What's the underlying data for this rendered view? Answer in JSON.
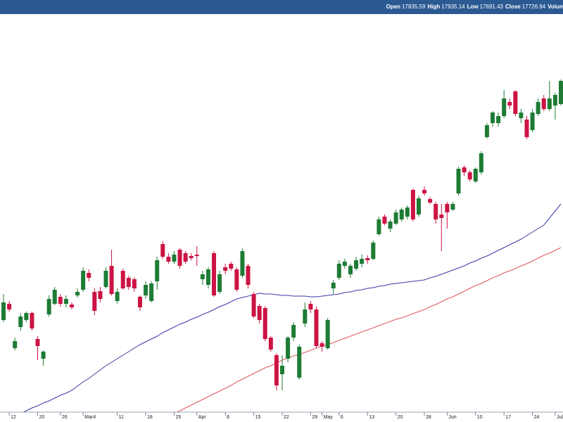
{
  "chart_data": {
    "type": "candlestick",
    "header": {
      "items": [
        {
          "label": "Open",
          "value": 17835.59
        },
        {
          "label": "High",
          "value": 17935.14
        },
        {
          "label": "Low",
          "value": 17691.43
        },
        {
          "label": "Close",
          "value": 17726.94
        }
      ],
      "trailing": "Volum"
    },
    "ylim": [
      15100,
      18000
    ],
    "grid": false,
    "up_color": "#1e7b34",
    "down_color": "#cc1444",
    "categories": [
      null,
      "12",
      null,
      null,
      null,
      null,
      "20",
      null,
      null,
      null,
      "26",
      null,
      null,
      null,
      "Mar4",
      null,
      null,
      null,
      null,
      null,
      "11",
      null,
      null,
      null,
      null,
      "18",
      null,
      null,
      null,
      null,
      "25",
      null,
      null,
      null,
      "Apr",
      null,
      null,
      null,
      null,
      "8",
      null,
      null,
      null,
      null,
      "15",
      null,
      null,
      null,
      null,
      "22",
      null,
      null,
      null,
      null,
      "29",
      null,
      "May",
      null,
      null,
      "6",
      null,
      null,
      null,
      null,
      "13",
      null,
      null,
      null,
      null,
      "20",
      null,
      null,
      null,
      null,
      "28",
      null,
      null,
      null,
      "Jun",
      null,
      null,
      null,
      null,
      "10",
      null,
      null,
      null,
      null,
      "17",
      null,
      null,
      null,
      null,
      "24",
      null,
      null,
      null,
      "Jul",
      null
    ],
    "open": [
      15825,
      15940,
      15625,
      15775,
      15825,
      15875,
      15690,
      15550,
      15865,
      15940,
      15990,
      15940,
      15935,
      16000,
      16040,
      16160,
      16025,
      16030,
      16060,
      16210,
      15960,
      16175,
      16125,
      16115,
      15990,
      16000,
      15960,
      16100,
      16365,
      16275,
      16240,
      16325,
      16300,
      16280,
      16290,
      16115,
      16075,
      16300,
      16025,
      16200,
      16225,
      16185,
      16140,
      16210,
      16010,
      15925,
      15910,
      15700,
      15575,
      15440,
      15550,
      15700,
      15415,
      15800,
      15940,
      15900,
      15660,
      15625,
      16050,
      16125,
      16210,
      16150,
      16190,
      16225,
      16265,
      16260,
      16435,
      16560,
      16475,
      16510,
      16540,
      16560,
      16750,
      16575,
      16750,
      16685,
      16650,
      16575,
      16650,
      16610,
      16725,
      16910,
      16875,
      16810,
      16875,
      17125,
      17225,
      17225,
      17275,
      17375,
      17450,
      17260,
      17250,
      17175,
      17290,
      17400,
      17325,
      17350,
      17360
    ],
    "high": [
      16010,
      15960,
      15700,
      15875,
      15885,
      15885,
      15710,
      15610,
      16000,
      16060,
      16010,
      16000,
      15950,
      16050,
      16200,
      16185,
      16050,
      16060,
      16200,
      16325,
      16050,
      16190,
      16140,
      16130,
      16000,
      16100,
      16100,
      16275,
      16385,
      16300,
      16315,
      16335,
      16315,
      16300,
      16350,
      16175,
      16200,
      16315,
      16175,
      16225,
      16240,
      16200,
      16335,
      16225,
      16025,
      15940,
      15925,
      15710,
      15590,
      15575,
      15710,
      15810,
      15650,
      15950,
      15960,
      15920,
      15675,
      15840,
      16110,
      16250,
      16260,
      16225,
      16275,
      16290,
      16285,
      16390,
      16560,
      16575,
      16540,
      16610,
      16625,
      16640,
      16760,
      16710,
      16775,
      16700,
      16665,
      16650,
      16665,
      16665,
      16915,
      16925,
      16890,
      16910,
      17025,
      17225,
      17310,
      17300,
      17460,
      17400,
      17460,
      17325,
      17275,
      17325,
      17400,
      17425,
      17525,
      17440,
      17535
    ],
    "low": [
      15810,
      15885,
      15610,
      15750,
      15810,
      15750,
      15540,
      15500,
      15850,
      15930,
      15920,
      15915,
      15900,
      15985,
      16025,
      16100,
      15860,
      15950,
      16050,
      16000,
      15940,
      16040,
      16040,
      16025,
      15890,
      15975,
      15950,
      16040,
      16260,
      16225,
      16225,
      16190,
      16225,
      16250,
      16210,
      16075,
      16050,
      15990,
      16010,
      16150,
      16175,
      16025,
      16125,
      16050,
      15840,
      15800,
      15675,
      15600,
      15325,
      15325,
      15525,
      15675,
      15400,
      15775,
      15875,
      15625,
      15600,
      15615,
      16010,
      16110,
      16190,
      16125,
      16175,
      16200,
      16225,
      16250,
      16425,
      16500,
      16450,
      16500,
      16525,
      16540,
      16525,
      16560,
      16710,
      16650,
      16510,
      16315,
      16475,
      16600,
      16710,
      16850,
      16810,
      16800,
      16860,
      17115,
      17200,
      17200,
      17260,
      17325,
      17275,
      17225,
      17110,
      17160,
      17275,
      17310,
      17310,
      17250,
      17350
    ],
    "close": [
      15950,
      15900,
      15675,
      15850,
      15875,
      15765,
      15640,
      15600,
      15975,
      16040,
      15940,
      15975,
      15915,
      16025,
      16175,
      16125,
      15890,
      15975,
      16175,
      16010,
      16025,
      16050,
      16060,
      16050,
      15915,
      16075,
      16085,
      16250,
      16275,
      16240,
      16290,
      16210,
      16240,
      16265,
      16280,
      16150,
      16185,
      16000,
      16150,
      16175,
      16190,
      16040,
      16315,
      16075,
      15850,
      15825,
      15690,
      15615,
      15360,
      15500,
      15700,
      15790,
      15635,
      15900,
      15900,
      15640,
      15635,
      15825,
      16090,
      16225,
      16240,
      16210,
      16250,
      16260,
      16250,
      16375,
      16540,
      16510,
      16525,
      16590,
      16610,
      16625,
      16540,
      16690,
      16725,
      16660,
      16540,
      16550,
      16590,
      16650,
      16900,
      16875,
      16825,
      16900,
      17010,
      17210,
      17300,
      17275,
      17400,
      17350,
      17290,
      17300,
      17125,
      17300,
      17375,
      17325,
      17400,
      17425,
      17525
    ],
    "series": [
      {
        "color": "#3a3aa8",
        "values": [
          null,
          null,
          null,
          15160,
          15180,
          15200,
          15215,
          15235,
          15250,
          15270,
          15290,
          15305,
          15325,
          15355,
          15385,
          15410,
          15440,
          15470,
          15500,
          15525,
          15550,
          15575,
          15600,
          15625,
          15650,
          15670,
          15690,
          15710,
          15735,
          15755,
          15775,
          15795,
          15810,
          15830,
          15845,
          15865,
          15880,
          15900,
          15920,
          15935,
          15955,
          15975,
          15985,
          15995,
          16005,
          16015,
          16010,
          16010,
          16005,
          16000,
          16000,
          15995,
          15995,
          15995,
          15990,
          15990,
          15995,
          16000,
          16005,
          16010,
          16020,
          16025,
          16035,
          16040,
          16050,
          16055,
          16065,
          16070,
          16080,
          16085,
          16090,
          16095,
          16100,
          16105,
          16110,
          16125,
          16135,
          16150,
          16165,
          16180,
          16195,
          16210,
          16230,
          16245,
          16265,
          16280,
          16300,
          16320,
          16340,
          16360,
          16380,
          16400,
          16425,
          16450,
          16475,
          16500,
          16550,
          16600,
          16650
        ]
      },
      {
        "color": "#e0575f",
        "values": [
          null,
          null,
          null,
          null,
          null,
          null,
          null,
          null,
          null,
          null,
          null,
          null,
          null,
          null,
          null,
          null,
          null,
          null,
          null,
          null,
          null,
          null,
          null,
          null,
          null,
          null,
          null,
          null,
          null,
          null,
          15160,
          15180,
          15200,
          15220,
          15240,
          15260,
          15280,
          15300,
          15320,
          15340,
          15360,
          15385,
          15405,
          15425,
          15445,
          15465,
          15485,
          15500,
          15520,
          15540,
          15555,
          15570,
          15580,
          15595,
          15610,
          15625,
          15640,
          15650,
          15665,
          15680,
          15695,
          15710,
          15725,
          15740,
          15755,
          15770,
          15785,
          15800,
          15815,
          15830,
          15840,
          15855,
          15870,
          15885,
          15900,
          15920,
          15935,
          15955,
          15975,
          15990,
          16010,
          16030,
          16050,
          16070,
          16085,
          16105,
          16125,
          16140,
          16160,
          16175,
          16190,
          16210,
          16225,
          16245,
          16265,
          16285,
          16300,
          16320,
          16340
        ]
      }
    ]
  }
}
